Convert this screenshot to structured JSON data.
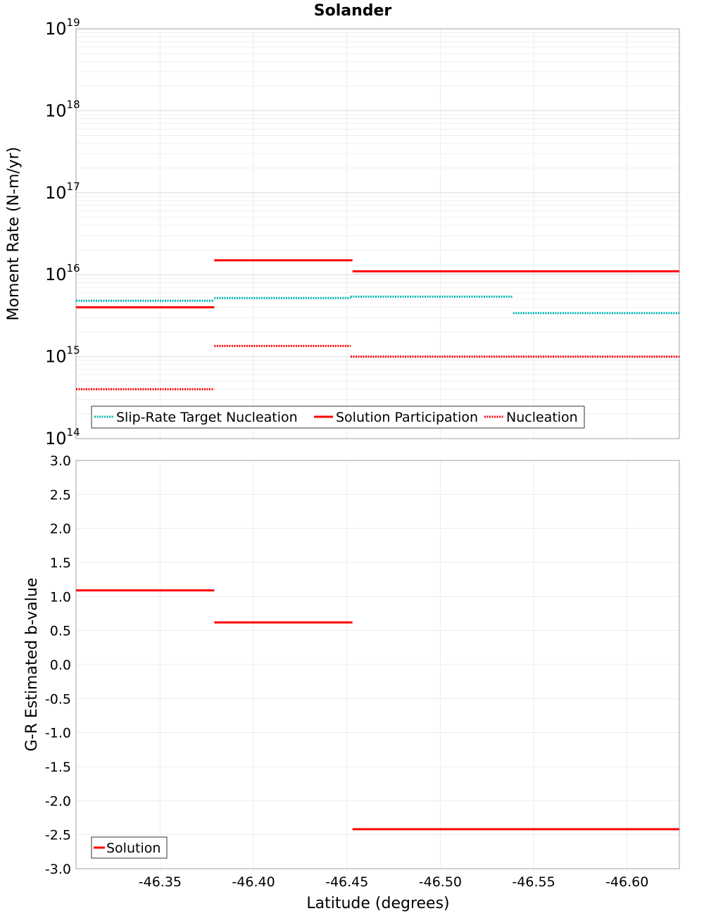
{
  "title": "Solander",
  "chart_data": [
    {
      "type": "line",
      "yscale": "log",
      "ylabel": "Moment Rate (N-m/yr)",
      "xlim": [
        -46.305,
        -46.628
      ],
      "ylim": [
        100000000000000.0,
        1e+19
      ],
      "ytick_base": "10",
      "yticks": [
        {
          "exp": "14"
        },
        {
          "exp": "15"
        },
        {
          "exp": "16"
        },
        {
          "exp": "17"
        },
        {
          "exp": "18"
        },
        {
          "exp": "19"
        }
      ],
      "series": [
        {
          "name": "Slip-Rate Target Nucleation",
          "color": "#00b4b4",
          "style": "dotted",
          "segments": [
            {
              "x0": -46.305,
              "x1": -46.379,
              "y": 4800000000000000.0
            },
            {
              "x0": -46.379,
              "x1": -46.452,
              "y": 5200000000000000.0
            },
            {
              "x0": -46.452,
              "x1": -46.539,
              "y": 5400000000000000.0
            },
            {
              "x0": -46.539,
              "x1": -46.628,
              "y": 3400000000000000.0
            }
          ]
        },
        {
          "name": "Solution Participation",
          "color": "#ff0000",
          "style": "solid",
          "segments": [
            {
              "x0": -46.305,
              "x1": -46.379,
              "y": 4000000000000000.0
            },
            {
              "x0": -46.379,
              "x1": -46.453,
              "y": 1.5e+16
            },
            {
              "x0": -46.453,
              "x1": -46.628,
              "y": 1.1e+16
            }
          ]
        },
        {
          "name": "Nucleation",
          "color": "#ff0000",
          "style": "dotted",
          "segments": [
            {
              "x0": -46.305,
              "x1": -46.379,
              "y": 400000000000000.0
            },
            {
              "x0": -46.379,
              "x1": -46.452,
              "y": 1350000000000000.0
            },
            {
              "x0": -46.452,
              "x1": -46.628,
              "y": 1000000000000000.0
            }
          ]
        }
      ],
      "legend_position": "bottom-left"
    },
    {
      "type": "line",
      "yscale": "linear",
      "ylabel": "G-R Estimated b-value",
      "xlabel": "Latitude (degrees)",
      "xlim": [
        -46.305,
        -46.628
      ],
      "ylim": [
        -3.0,
        3.0
      ],
      "yticks": [
        "3.0",
        "2.5",
        "2.0",
        "1.5",
        "1.0",
        "0.5",
        "0.0",
        "-0.5",
        "-1.0",
        "-1.5",
        "-2.0",
        "-2.5",
        "-3.0"
      ],
      "xticks": [
        "-46.35",
        "-46.40",
        "-46.45",
        "-46.50",
        "-46.55",
        "-46.60"
      ],
      "series": [
        {
          "name": "Solution",
          "color": "#ff0000",
          "style": "solid",
          "segments": [
            {
              "x0": -46.305,
              "x1": -46.379,
              "y": 1.09
            },
            {
              "x0": -46.379,
              "x1": -46.453,
              "y": 0.62
            },
            {
              "x0": -46.453,
              "x1": -46.628,
              "y": -2.42
            }
          ]
        }
      ],
      "legend_position": "bottom-left"
    }
  ]
}
